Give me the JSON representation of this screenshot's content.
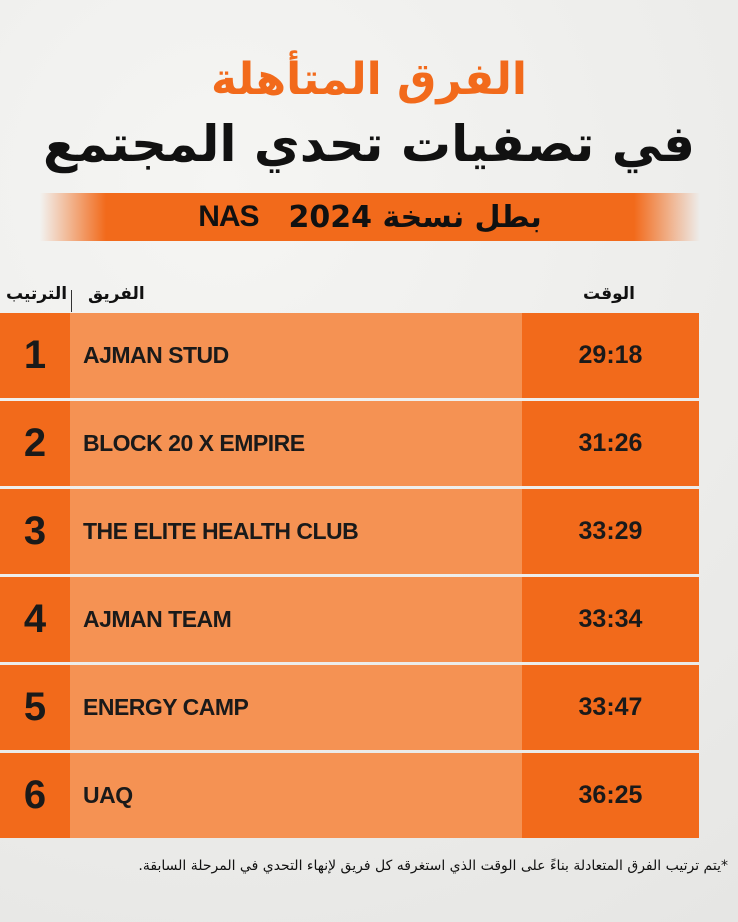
{
  "header": {
    "title_line1": "الفرق المتأهلة",
    "title_line2": "في تصفيات تحدي المجتمع"
  },
  "banner": {
    "subtitle": "بطل نسخة 2024",
    "brand": "NAS"
  },
  "table": {
    "headers": {
      "rank": "الترتيب",
      "team": "الفريق",
      "time": "الوقت"
    },
    "rows": [
      {
        "rank": "1",
        "team": "AJMAN STUD",
        "time": "29:18"
      },
      {
        "rank": "2",
        "team": "BLOCK 20 X EMPIRE",
        "time": "31:26"
      },
      {
        "rank": "3",
        "team": "THE ELITE HEALTH CLUB",
        "time": "33:29"
      },
      {
        "rank": "4",
        "team": "AJMAN TEAM",
        "time": "33:34"
      },
      {
        "rank": "5",
        "team": "ENERGY CAMP",
        "time": "33:47"
      },
      {
        "rank": "6",
        "team": "UAQ",
        "time": "36:25"
      }
    ]
  },
  "footnote": "*يتم ترتيب الفرق المتعادلة بناءً على الوقت الذي استغرقه كل فريق لإنهاء التحدي في المرحلة السابقة.",
  "colors": {
    "accent": "#f26a1b",
    "accent_light": "#f59253",
    "text": "#111111"
  }
}
